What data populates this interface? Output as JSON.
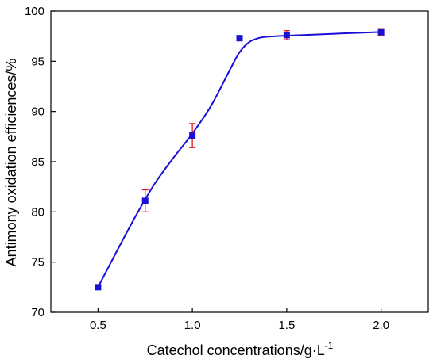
{
  "chart_data": {
    "type": "scatter",
    "xlabel": "Catechol concentrations/g·L",
    "xlabel_superscript": "-1",
    "ylabel": "Antimony oxidation efficiences/%",
    "xlim": [
      0.25,
      2.25
    ],
    "ylim": [
      70,
      100
    ],
    "xticks": [
      "0.5",
      "1.0",
      "1.5",
      "2.0"
    ],
    "xtick_values": [
      0.5,
      1.0,
      1.5,
      2.0
    ],
    "yticks": [
      "70",
      "75",
      "80",
      "85",
      "90",
      "95",
      "100"
    ],
    "ytick_values": [
      70,
      75,
      80,
      85,
      90,
      95,
      100
    ],
    "grid": false,
    "series": [
      {
        "x": [
          0.5,
          0.75,
          1.0,
          1.25,
          1.5,
          2.0
        ],
        "y": [
          72.5,
          81.1,
          87.6,
          97.3,
          97.6,
          97.9
        ],
        "err": [
          0.15,
          1.1,
          1.2,
          0.25,
          0.45,
          0.35
        ],
        "marker": "square",
        "marker_color": "#1a0fd6",
        "error_color": "#e8141a",
        "fit_curve": {
          "x": [
            0.5,
            0.6,
            0.7,
            0.8,
            0.9,
            1.0,
            1.1,
            1.2,
            1.25,
            1.3,
            1.35,
            1.4,
            1.5,
            1.6,
            1.8,
            2.0
          ],
          "y": [
            72.5,
            76.1,
            79.6,
            82.8,
            85.4,
            87.8,
            90.6,
            94.2,
            95.9,
            96.9,
            97.3,
            97.45,
            97.55,
            97.62,
            97.78,
            97.92
          ],
          "color": "#1a0fd6"
        }
      }
    ]
  }
}
